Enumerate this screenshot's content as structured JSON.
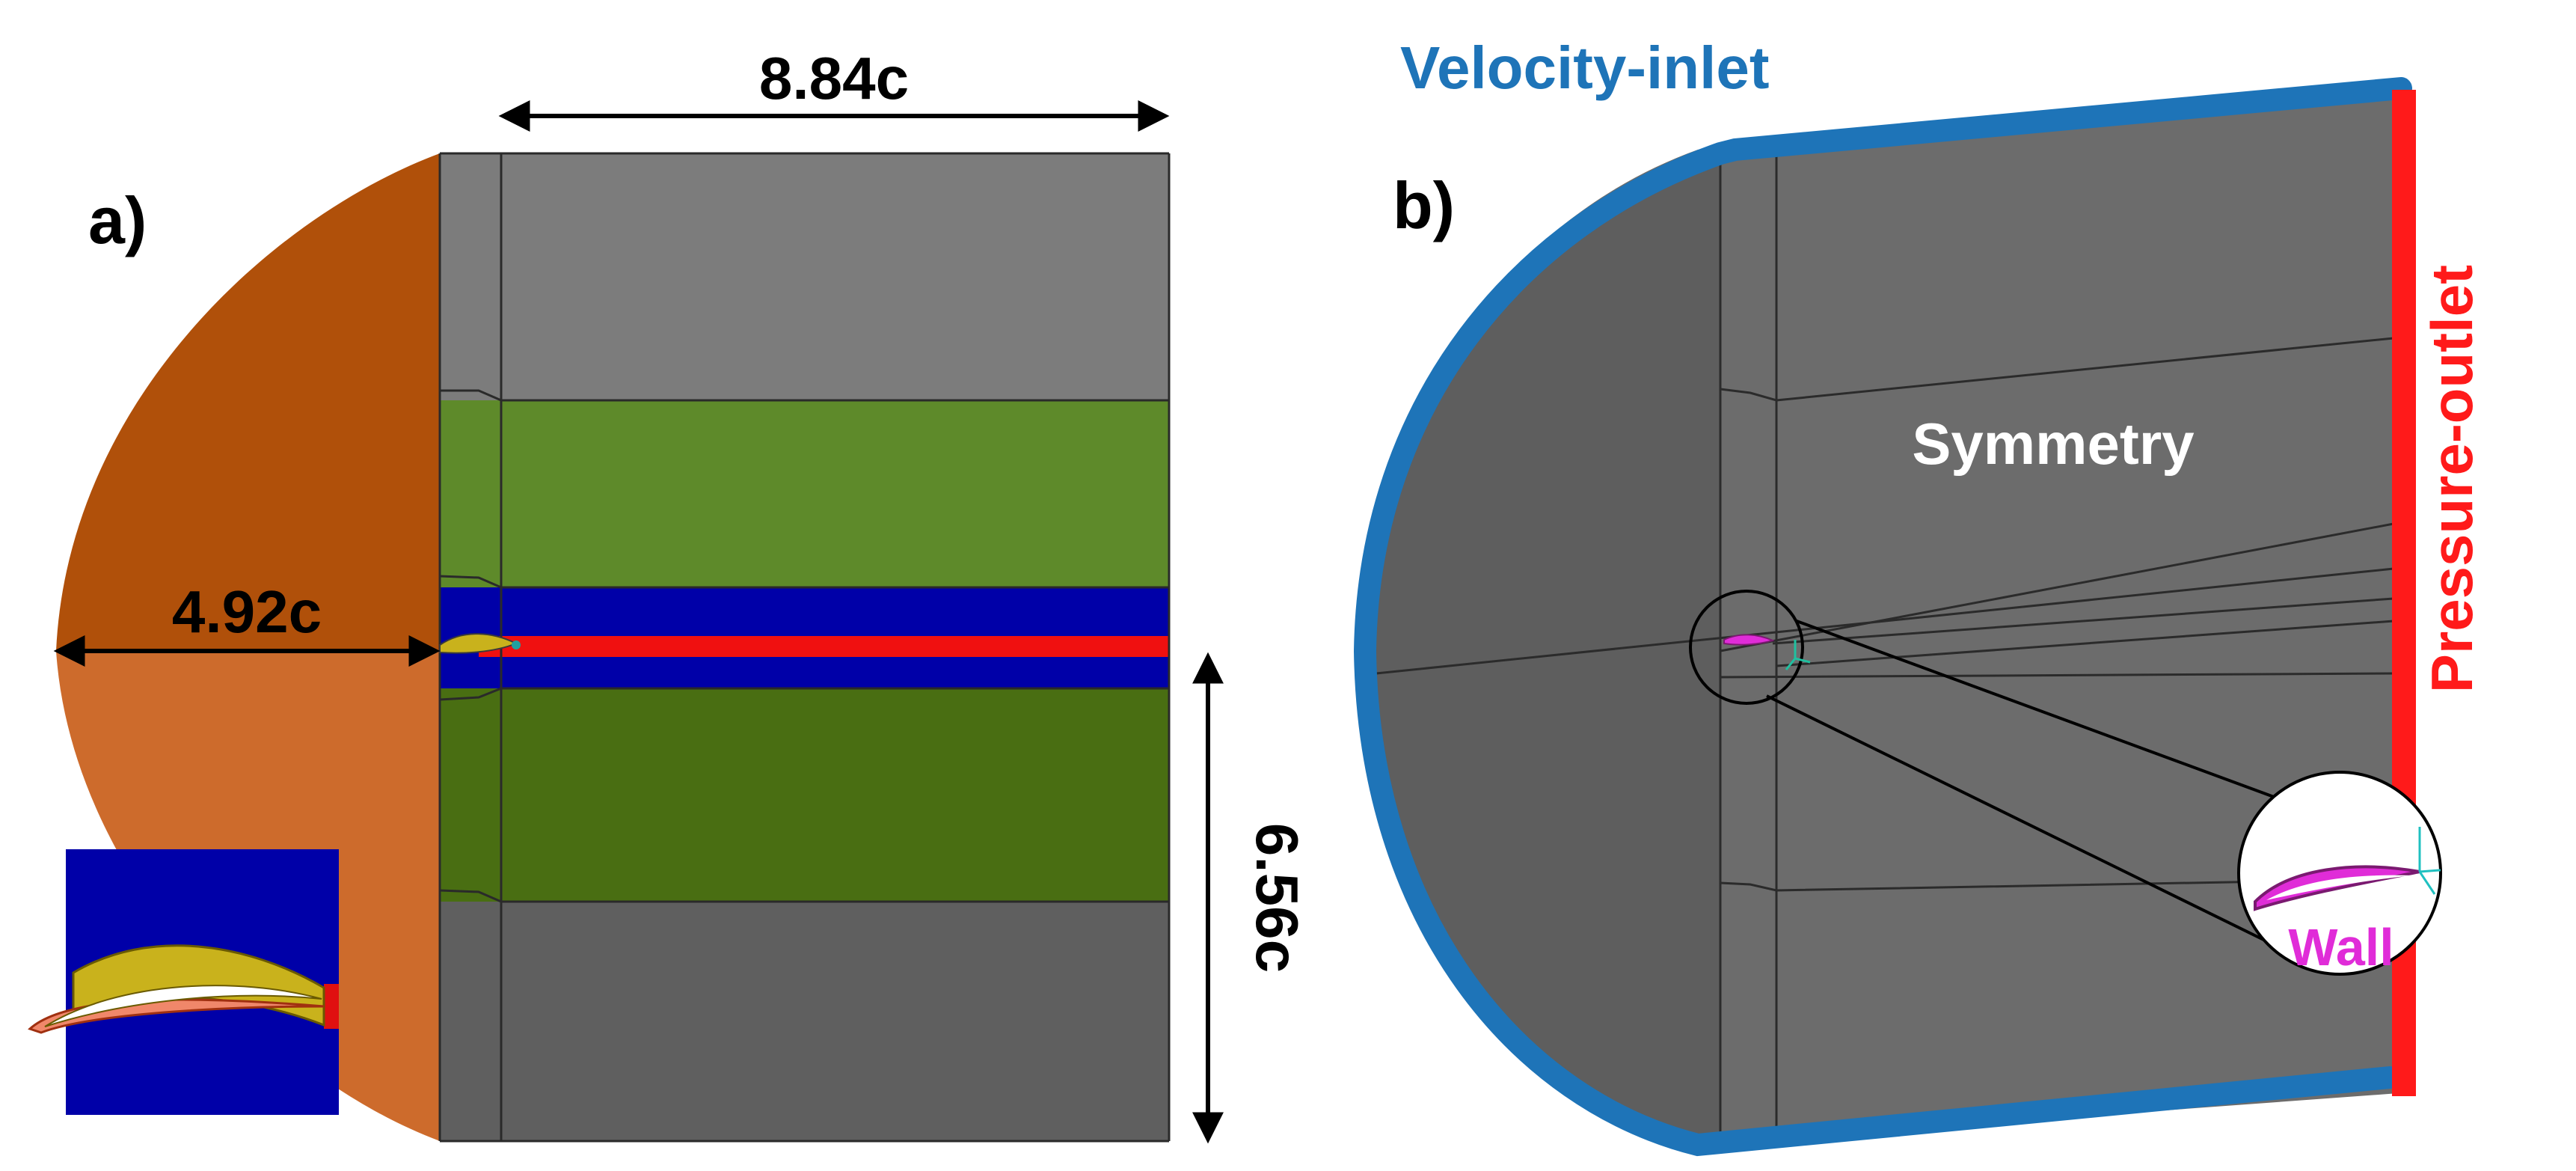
{
  "panel_a": {
    "label": "a)",
    "dim_length": "8.84c",
    "dim_upstream": "4.92c",
    "dim_height": "6.56c"
  },
  "panel_b": {
    "label": "b)",
    "inlet": "Velocity-inlet",
    "outlet": "Pressure-outlet",
    "symmetry": "Symmetry",
    "wall": "Wall"
  },
  "colors": {
    "orange_dark": "#B0500A",
    "orange_light": "#CD6B2C",
    "grey_light": "#7C7C7C",
    "grey_dark": "#5F5F5F",
    "green_light": "#5E8A2A",
    "green_dark": "#496E12",
    "blue": "#0000A8",
    "red": "#F01010",
    "airfoil_yellow": "#C9B21C",
    "inlet_blue": "#1E74B8",
    "outlet_red": "#FF1A1A",
    "wall_magenta": "#E02CD8"
  }
}
